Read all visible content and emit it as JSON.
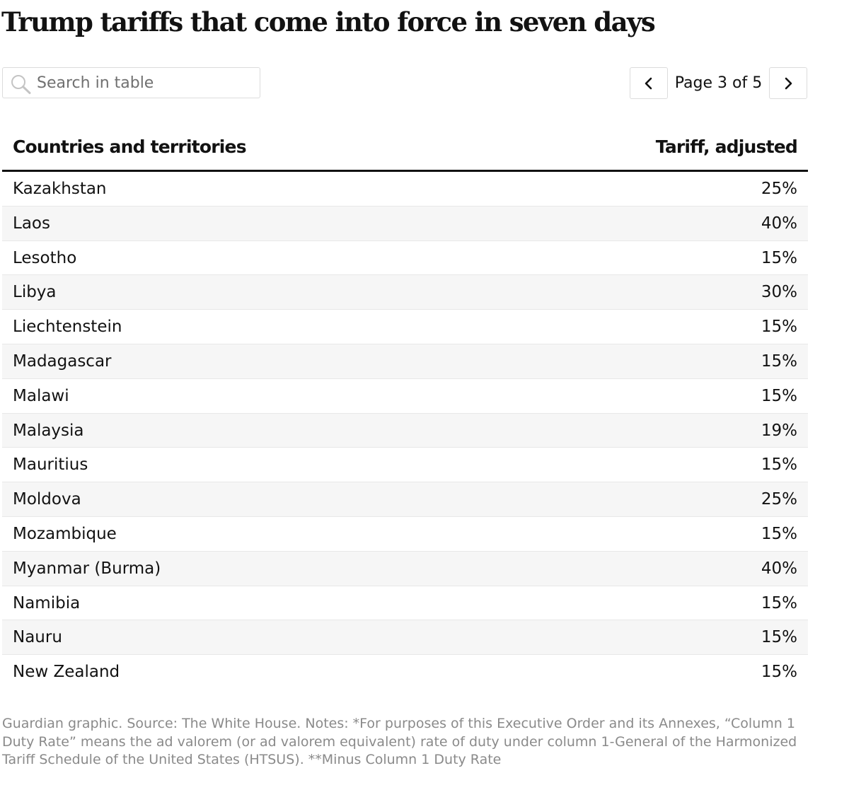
{
  "header": {
    "title": "Trump tariffs that come into force in seven days"
  },
  "search": {
    "placeholder": "Search in table",
    "value": ""
  },
  "pagination": {
    "label": "Page 3 of 5",
    "prev_label": "Previous page",
    "next_label": "Next page"
  },
  "table": {
    "columns": {
      "country": "Countries and territories",
      "tariff": "Tariff, adjusted"
    },
    "rows": [
      {
        "country": "Kazakhstan",
        "tariff": "25%"
      },
      {
        "country": "Laos",
        "tariff": "40%"
      },
      {
        "country": "Lesotho",
        "tariff": "15%"
      },
      {
        "country": "Libya",
        "tariff": "30%"
      },
      {
        "country": "Liechtenstein",
        "tariff": "15%"
      },
      {
        "country": "Madagascar",
        "tariff": "15%"
      },
      {
        "country": "Malawi",
        "tariff": "15%"
      },
      {
        "country": "Malaysia",
        "tariff": "19%"
      },
      {
        "country": "Mauritius",
        "tariff": "15%"
      },
      {
        "country": "Moldova",
        "tariff": "25%"
      },
      {
        "country": "Mozambique",
        "tariff": "15%"
      },
      {
        "country": "Myanmar (Burma)",
        "tariff": "40%"
      },
      {
        "country": "Namibia",
        "tariff": "15%"
      },
      {
        "country": "Nauru",
        "tariff": "15%"
      },
      {
        "country": "New Zealand",
        "tariff": "15%"
      }
    ]
  },
  "footer": {
    "note": "Guardian graphic. Source: The White House. Notes: *For purposes of this Executive Order and its Annexes, “Column 1 Duty Rate” means the ad valorem (or ad valorem equivalent) rate of duty under column 1-General of the Harmonized Tariff Schedule of the United States (HTSUS). **Minus Column 1 Duty Rate"
  },
  "icons": {
    "search": "search-icon",
    "prev": "chevron-left-icon",
    "next": "chevron-right-icon"
  },
  "colors": {
    "text": "#121212",
    "muted": "#8a8a8a",
    "border": "#dcdcdc",
    "row_alt": "#f6f6f6"
  }
}
